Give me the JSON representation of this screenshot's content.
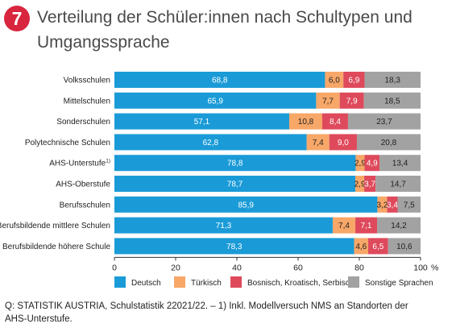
{
  "header": {
    "figure_number": "7",
    "title_lines": [
      "Verteilung der Schüler:innen nach Schultypen und",
      "Umgangssprache"
    ]
  },
  "colors": {
    "badge": "#d7263d",
    "title": "#4a4a4a",
    "text": "#222222",
    "axis": "#333333"
  },
  "chart_data": {
    "type": "bar",
    "orientation": "horizontal",
    "stacked": true,
    "categories": [
      {
        "label": "Volksschulen",
        "footnote": ""
      },
      {
        "label": "Mittelschulen",
        "footnote": ""
      },
      {
        "label": "Sonderschulen",
        "footnote": ""
      },
      {
        "label": "Polytechnische Schulen",
        "footnote": ""
      },
      {
        "label": "AHS-Unterstufe",
        "footnote": "1)"
      },
      {
        "label": "AHS-Oberstufe",
        "footnote": ""
      },
      {
        "label": "Berufsschulen",
        "footnote": ""
      },
      {
        "label": "Berufsbildende mittlere Schulen",
        "footnote": ""
      },
      {
        "label": "Berufsbildende höhere Schule",
        "footnote": ""
      }
    ],
    "series": [
      {
        "name": "Deutsch",
        "color": "#1a9bd7",
        "label_color": "#ffffff",
        "values": [
          68.8,
          65.9,
          57.1,
          62.8,
          78.8,
          78.7,
          85.9,
          71.3,
          78.3
        ],
        "labels": [
          "68,8",
          "65,9",
          "57,1",
          "62,8",
          "78,8",
          "78,7",
          "85,9",
          "71,3",
          "78,3"
        ]
      },
      {
        "name": "Türkisch",
        "color": "#f7a768",
        "label_color": "#222222",
        "values": [
          6.0,
          7.7,
          10.8,
          7.4,
          2.9,
          2.9,
          3.2,
          7.4,
          4.6
        ],
        "labels": [
          "6,0",
          "7,7",
          "10,8",
          "7,4",
          "2,9",
          "2,9",
          "3,2",
          "7,4",
          "4,6"
        ]
      },
      {
        "name": "Bosnisch, Kroatisch, Serbisch",
        "color": "#de4a5c",
        "label_color": "#ffffff",
        "values": [
          6.9,
          7.9,
          8.4,
          9.0,
          4.9,
          3.7,
          3.4,
          7.1,
          6.5
        ],
        "labels": [
          "6,9",
          "7,9",
          "8,4",
          "9,0",
          "4,9",
          "3,7",
          "3,4",
          "7,1",
          "6,5"
        ]
      },
      {
        "name": "Sonstige Sprachen",
        "color": "#a2a2a2",
        "label_color": "#222222",
        "values": [
          18.3,
          18.5,
          23.7,
          20.8,
          13.4,
          14.7,
          7.5,
          14.2,
          10.6
        ],
        "labels": [
          "18,3",
          "18,5",
          "23,7",
          "20,8",
          "13,4",
          "14,7",
          "7,5",
          "14,2",
          "10,6"
        ]
      }
    ],
    "x_ticks": [
      "0",
      "20",
      "40",
      "60",
      "80",
      "100"
    ],
    "x_unit": "%",
    "xlim": [
      0,
      100
    ],
    "grid": false,
    "legend_position": "bottom"
  },
  "source": {
    "lines": [
      "Q: STATISTIK AUSTRIA, Schulstatistik 22021/22. – 1) Inkl. Modellversuch NMS an Standorten der",
      "AHS-Unterstufe."
    ]
  }
}
